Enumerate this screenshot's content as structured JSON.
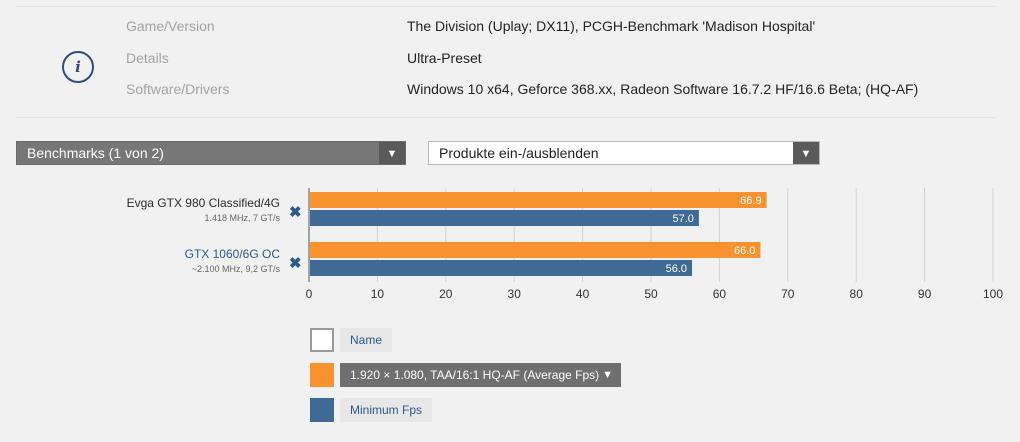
{
  "info": {
    "rows": [
      {
        "key": "Game/Version",
        "value": "The Division (Uplay; DX11), PCGH-Benchmark 'Madison Hospital'"
      },
      {
        "key": "Details",
        "value": "Ultra-Preset"
      },
      {
        "key": "Software/Drivers",
        "value": "Windows 10 x64, Geforce 368.xx, Radeon Software 16.7.2 HF/16.6 Beta; (HQ-AF)"
      }
    ]
  },
  "controls": {
    "benchmarks_select": "Benchmarks (1 von 2)",
    "products_select": "Produkte ein-/ausblenden"
  },
  "gpus": [
    {
      "name": "Evga GTX 980 Classified/4G",
      "spec": "1.418 MHz, 7 GT/s",
      "linked": false
    },
    {
      "name": "GTX 1060/6G OC",
      "spec": "~2.100 MHz, 9,2 GT/s",
      "linked": true
    }
  ],
  "chart_data": {
    "type": "bar",
    "orientation": "horizontal",
    "categories": [
      "Evga GTX 980 Classified/4G",
      "GTX 1060/6G OC"
    ],
    "series": [
      {
        "name": "1.920 × 1.080, TAA/16:1 HQ-AF (Average Fps)",
        "color": "#f7922e",
        "values": [
          66.9,
          66.0
        ]
      },
      {
        "name": "Minimum Fps",
        "color": "#3f6a96",
        "values": [
          57.0,
          56.0
        ]
      }
    ],
    "xlim": [
      0,
      100
    ],
    "xticks": [
      0,
      10,
      20,
      30,
      40,
      50,
      60,
      70,
      80,
      90,
      100
    ],
    "grid": true,
    "legend_position": "bottom"
  },
  "legend": {
    "name_label": "Name",
    "average_label": "1.920 × 1.080, TAA/16:1 HQ-AF (Average Fps)",
    "minimum_label": "Minimum Fps"
  },
  "colors": {
    "accent_blue": "#2e5a8a",
    "orange": "#f7922e",
    "blue": "#3f6a96"
  }
}
